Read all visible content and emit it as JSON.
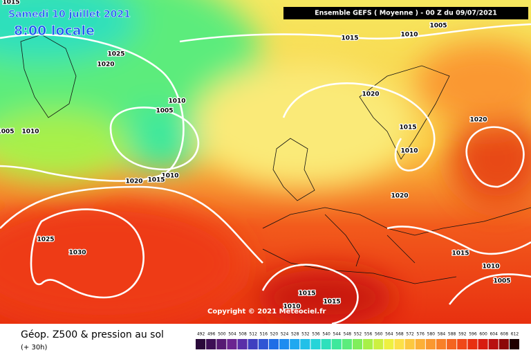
{
  "header": {
    "date": "Samedi 10 juillet 2021",
    "time": "8:00 locale",
    "run": "Ensemble GEFS  ( Moyenne )  -  00 Z du 09/07/2021"
  },
  "isobar_labels": [
    "1015",
    "1025",
    "1020",
    "1015",
    "1010",
    "1005",
    "1010",
    "1005",
    "1005",
    "1010",
    "1020",
    "1015",
    "1010",
    "1020",
    "1010",
    "1020",
    "1015",
    "1020",
    "1025",
    "1030",
    "1015",
    "1010",
    "1005",
    "1015",
    "1015",
    "1010"
  ],
  "copyright": "Copyright © 2021 Meteociel.fr",
  "legend": {
    "title": "Géop. Z500 & pression au sol",
    "lead": "(+ 30h)",
    "scale": [
      "492",
      "496",
      "500",
      "504",
      "508",
      "512",
      "516",
      "520",
      "524",
      "528",
      "532",
      "536",
      "540",
      "544",
      "548",
      "552",
      "556",
      "560",
      "564",
      "568",
      "572",
      "576",
      "580",
      "584",
      "588",
      "592",
      "596",
      "600",
      "604",
      "608",
      "612"
    ],
    "colors": [
      "#2a0a3a",
      "#3d0f55",
      "#561a73",
      "#6b2590",
      "#5a2fa8",
      "#3f3fbf",
      "#2f55d4",
      "#1f6ee6",
      "#1e8cf0",
      "#20a8f0",
      "#22c0e8",
      "#26d4d8",
      "#2ee0bc",
      "#3ee89c",
      "#5cec7c",
      "#80ee5c",
      "#a8f048",
      "#ccf040",
      "#eef040",
      "#fce048",
      "#fcc840",
      "#fcb038",
      "#fa9830",
      "#f88028",
      "#f46420",
      "#f04818",
      "#e83010",
      "#d81c10",
      "#b81010",
      "#8c0808",
      "#200000"
    ]
  }
}
